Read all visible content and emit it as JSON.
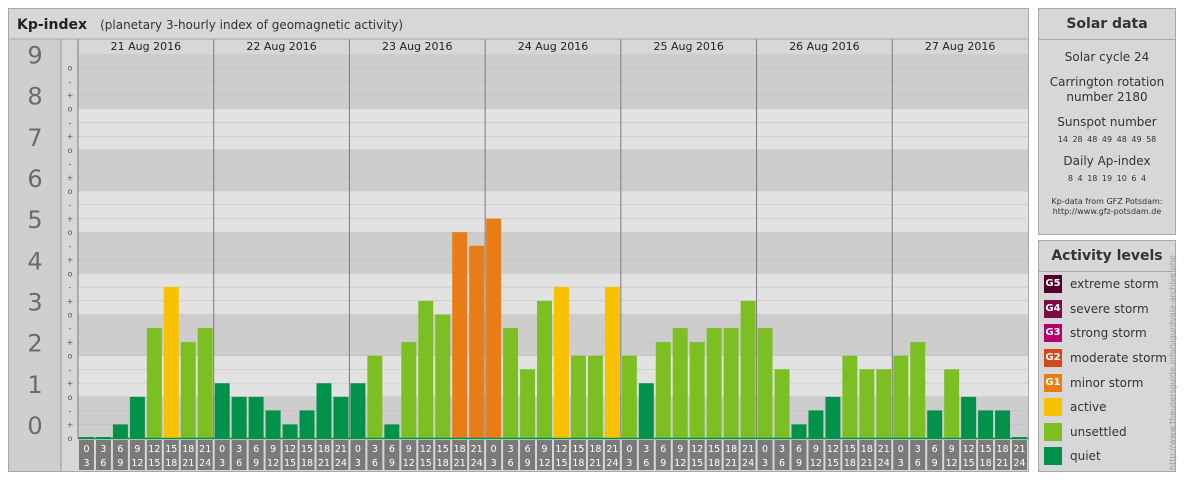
{
  "header": {
    "title": "Kp-index",
    "subtitle": "(planetary 3-hourly index of geomagnetic activity)"
  },
  "chart_data": {
    "type": "bar",
    "title": "Kp-index",
    "subtitle": "(planetary 3-hourly index of geomagnetic activity)",
    "ylim": [
      0,
      9.33
    ],
    "y_ticks": [
      "0",
      "1",
      "2",
      "3",
      "4",
      "5",
      "6",
      "7",
      "8",
      "9"
    ],
    "y_minor_ticks": [
      "o",
      "+",
      "-",
      "o",
      "+",
      "-",
      "o",
      "+",
      "-",
      "o",
      "+",
      "-",
      "o",
      "+",
      "-",
      "o",
      "+",
      "-",
      "o",
      "+",
      "-",
      "o",
      "+",
      "-",
      "o",
      "+",
      "-",
      "o"
    ],
    "days": [
      "21 Aug 2016",
      "22 Aug 2016",
      "23 Aug 2016",
      "24 Aug 2016",
      "25 Aug 2016",
      "26 Aug 2016",
      "27 Aug 2016"
    ],
    "slot_start": [
      "0",
      "3",
      "6",
      "9",
      "12",
      "15",
      "18",
      "21"
    ],
    "slot_end": [
      "3",
      "6",
      "9",
      "12",
      "15",
      "18",
      "21",
      "24"
    ],
    "values": [
      [
        0.0,
        0.0,
        0.33,
        1.0,
        2.67,
        3.67,
        2.33,
        2.67
      ],
      [
        1.33,
        1.0,
        1.0,
        0.67,
        0.33,
        0.67,
        1.33,
        1.0
      ],
      [
        1.33,
        2.0,
        0.33,
        2.33,
        3.33,
        3.0,
        5.0,
        4.67
      ],
      [
        5.33,
        2.67,
        1.67,
        3.33,
        3.67,
        2.0,
        2.0,
        3.67
      ],
      [
        2.0,
        1.33,
        2.33,
        2.67,
        2.33,
        2.67,
        2.67,
        3.33
      ],
      [
        2.67,
        1.67,
        0.33,
        0.67,
        1.0,
        2.0,
        1.67,
        1.67
      ],
      [
        2.0,
        2.33,
        0.67,
        1.67,
        1.0,
        0.67,
        0.67,
        0.0
      ]
    ],
    "levels": [
      [
        "quiet",
        "quiet",
        "quiet",
        "quiet",
        "unsettled",
        "active",
        "unsettled",
        "unsettled"
      ],
      [
        "quiet",
        "quiet",
        "quiet",
        "quiet",
        "quiet",
        "quiet",
        "quiet",
        "quiet"
      ],
      [
        "quiet",
        "unsettled",
        "quiet",
        "unsettled",
        "unsettled",
        "unsettled",
        "G1",
        "G1"
      ],
      [
        "G1",
        "unsettled",
        "unsettled",
        "unsettled",
        "active",
        "unsettled",
        "unsettled",
        "active"
      ],
      [
        "unsettled",
        "quiet",
        "unsettled",
        "unsettled",
        "unsettled",
        "unsettled",
        "unsettled",
        "unsettled"
      ],
      [
        "unsettled",
        "unsettled",
        "quiet",
        "quiet",
        "quiet",
        "unsettled",
        "unsettled",
        "unsettled"
      ],
      [
        "unsettled",
        "unsettled",
        "quiet",
        "unsettled",
        "quiet",
        "quiet",
        "quiet",
        "quiet"
      ]
    ],
    "colors": {
      "quiet": "#00924a",
      "unsettled": "#7cbf22",
      "active": "#f8c200",
      "G1": "#e87c15",
      "G2": "#d2491e",
      "G3": "#b4006a",
      "G4": "#7d0c44",
      "G5": "#55002a"
    },
    "legend_placement": "right",
    "grid": true
  },
  "solar_data": {
    "heading": "Solar data",
    "cycle": "Solar cycle 24",
    "carrington_line1": "Carrington rotation",
    "carrington_line2": "number 2180",
    "sunspot_label": "Sunspot number",
    "sunspot_values": "14 28 48 49 48 49 58",
    "ap_label": "Daily Ap-index",
    "ap_values": "8 4 18 19 10 6 4",
    "source_line1": "Kp-data from GFZ Potsdam:",
    "source_line2": "http://www.gfz-potsdam.de"
  },
  "activity_levels": {
    "heading": "Activity levels",
    "items": [
      {
        "code": "G5",
        "label": "extreme storm",
        "color": "#55002a"
      },
      {
        "code": "G4",
        "label": "severe storm",
        "color": "#7d0c44"
      },
      {
        "code": "G3",
        "label": "strong storm",
        "color": "#b4006a"
      },
      {
        "code": "G2",
        "label": "moderate storm",
        "color": "#d2491e"
      },
      {
        "code": "G1",
        "label": "minor storm",
        "color": "#e87c15"
      },
      {
        "code": "",
        "label": "active",
        "color": "#f8c200"
      },
      {
        "code": "",
        "label": "unsettled",
        "color": "#7cbf22"
      },
      {
        "code": "",
        "label": "quiet",
        "color": "#00924a"
      }
    ]
  },
  "watermark": "http://www.theusersguide.info/sigurdvala-archive.php"
}
